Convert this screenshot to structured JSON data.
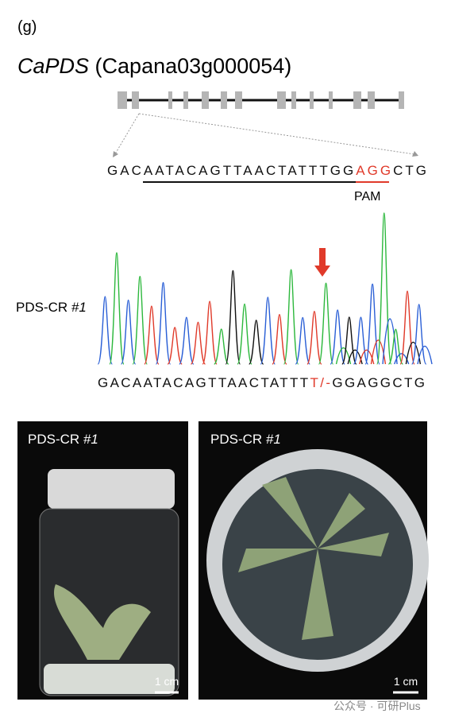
{
  "panel_label": "(g)",
  "title": {
    "gene": "CaPDS",
    "id": "(Capana03g000054)"
  },
  "target": {
    "parts": [
      "GAC",
      "AATACAGTTAACTATTTGG",
      "AGG",
      "CTG"
    ],
    "pam_label": "PAM"
  },
  "chromatogram": {
    "sample": "PDS-CR",
    "line": "#1",
    "sequence": {
      "parts": [
        "GACAATACAGTTAACTATTT",
        "T/-",
        "GGAGGCTG"
      ]
    }
  },
  "photos": [
    {
      "sample": "PDS-CR",
      "line": "#1",
      "scale": "1 cm"
    },
    {
      "sample": "PDS-CR",
      "line": "#1",
      "scale": "1 cm"
    }
  ],
  "watermark": "公众号 · 可研Plus"
}
